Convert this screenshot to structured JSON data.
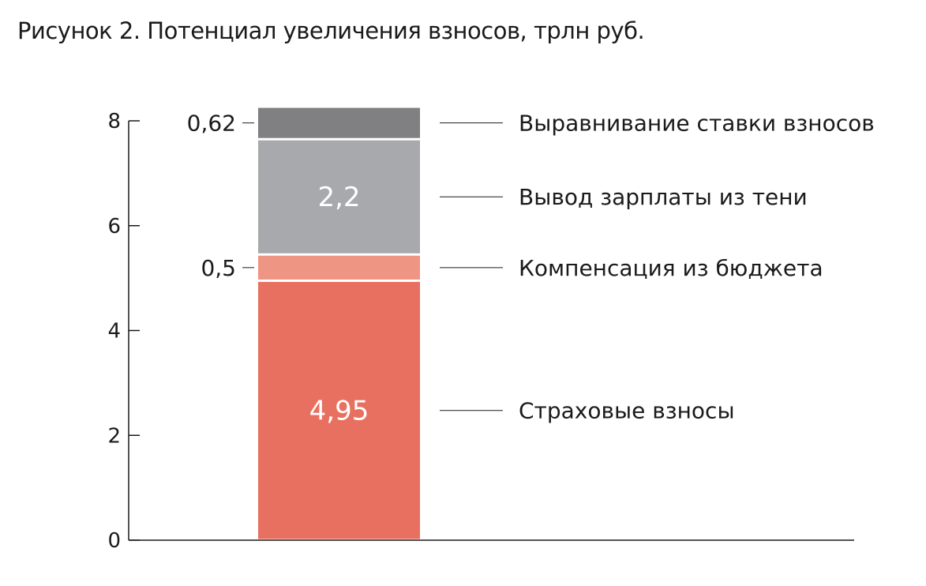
{
  "title": "Рисунок 2. Потенциал увеличения взносов, трлн руб.",
  "chart_data": {
    "type": "bar",
    "stacked": true,
    "categories": [
      ""
    ],
    "ylim": [
      0,
      8
    ],
    "yticks": [
      0,
      2,
      4,
      6,
      8
    ],
    "grid": false,
    "series": [
      {
        "name": "Страховые взносы",
        "value": 4.95,
        "label": "4,95",
        "label_position": "inside",
        "color": "#E87060"
      },
      {
        "name": "Компенсация из бюджета",
        "value": 0.5,
        "label": "0,5",
        "label_position": "outside-left",
        "color": "#EE9583"
      },
      {
        "name": "Вывод зарплаты из тени",
        "value": 2.2,
        "label": "2,2",
        "label_position": "inside",
        "color": "#A8A9AC"
      },
      {
        "name": "Выравнивание ставки взносов",
        "value": 0.62,
        "label": "0,62",
        "label_position": "outside-left",
        "color": "#808083"
      }
    ]
  }
}
